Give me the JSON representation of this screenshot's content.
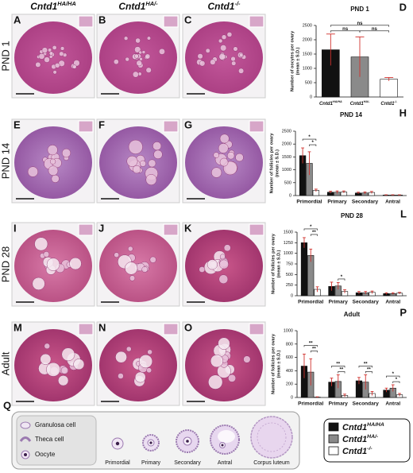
{
  "figure": {
    "columns": [
      {
        "gene": "Cntd1",
        "allele": "HA/HA"
      },
      {
        "gene": "Cntd1",
        "allele": "HA/-"
      },
      {
        "gene": "Cntd1",
        "allele": "-/-"
      }
    ],
    "rows": [
      "PND 1",
      "PND 14",
      "PND 28",
      "Adult"
    ],
    "panels": [
      [
        "A",
        "B",
        "C"
      ],
      [
        "E",
        "F",
        "G"
      ],
      [
        "I",
        "J",
        "K"
      ],
      [
        "M",
        "N",
        "O"
      ]
    ]
  },
  "chart_data": [
    {
      "type": "bar",
      "panel": "D",
      "title": "PND 1",
      "ylabel": [
        "Number of oocytes per ovary",
        "(mean ± S.D.)"
      ],
      "categories": [
        {
          "gene": "Cntd1",
          "allele": "HA/HA"
        },
        {
          "gene": "Cntd1",
          "allele": "HA/-"
        },
        {
          "gene": "Cntd1",
          "allele": "-/-"
        }
      ],
      "values": [
        1650,
        1400,
        620
      ],
      "errors": [
        550,
        700,
        60
      ],
      "colors": [
        "#111111",
        "#8a8a8a",
        "#ffffff"
      ],
      "ylim": [
        0,
        2500
      ],
      "yticks": [
        0,
        500,
        1000,
        1500,
        2000,
        2500
      ],
      "annotations": [
        "ns",
        "ns",
        "ns"
      ]
    },
    {
      "type": "grouped_bar",
      "panel": "H",
      "title": "PND 14",
      "ylabel": [
        "Number of follicles per ovary",
        "(mean ± S.D.)"
      ],
      "categories": [
        "Primordial",
        "Primary",
        "Secondary",
        "Antral"
      ],
      "series": [
        {
          "color": "#111111",
          "values": [
            1550,
            130,
            100,
            20
          ],
          "errors": [
            300,
            40,
            30,
            10
          ]
        },
        {
          "color": "#8a8a8a",
          "values": [
            1250,
            130,
            100,
            20
          ],
          "errors": [
            450,
            50,
            40,
            10
          ]
        },
        {
          "color": "#ffffff",
          "values": [
            200,
            140,
            120,
            20
          ],
          "errors": [
            50,
            40,
            40,
            10
          ]
        }
      ],
      "ylim": [
        0,
        2500
      ],
      "yticks": [
        0,
        500,
        1000,
        1500,
        2000,
        2500
      ],
      "annotations": [
        "*",
        "*"
      ]
    },
    {
      "type": "grouped_bar",
      "panel": "L",
      "title": "PND 28",
      "ylabel": [
        "Number of follicles per ovary",
        "(mean ± S.D.)"
      ],
      "categories": [
        "Primordial",
        "Primary",
        "Secondary",
        "Antral"
      ],
      "series": [
        {
          "color": "#111111",
          "values": [
            1250,
            220,
            70,
            50
          ],
          "errors": [
            120,
            100,
            30,
            20
          ]
        },
        {
          "color": "#8a8a8a",
          "values": [
            950,
            230,
            70,
            50
          ],
          "errors": [
            150,
            80,
            30,
            20
          ]
        },
        {
          "color": "#ffffff",
          "values": [
            150,
            100,
            80,
            60
          ],
          "errors": [
            60,
            40,
            30,
            20
          ]
        }
      ],
      "ylim": [
        0,
        1500
      ],
      "yticks": [
        0,
        250,
        500,
        750,
        1000,
        1250,
        1500
      ],
      "annotations": [
        "*",
        "**",
        "*"
      ]
    },
    {
      "type": "grouped_bar",
      "panel": "P",
      "title": "Adult",
      "ylabel": [
        "Number of follicles per ovary",
        "(mean ± S.D.)"
      ],
      "categories": [
        "Primordial",
        "Primary",
        "Secondary",
        "Antral"
      ],
      "series": [
        {
          "color": "#111111",
          "values": [
            470,
            230,
            250,
            110
          ],
          "errors": [
            180,
            60,
            50,
            30
          ]
        },
        {
          "color": "#8a8a8a",
          "values": [
            380,
            240,
            230,
            140
          ],
          "errors": [
            200,
            100,
            110,
            50
          ]
        },
        {
          "color": "#ffffff",
          "values": [
            5,
            30,
            60,
            40
          ],
          "errors": [
            5,
            20,
            30,
            20
          ]
        }
      ],
      "ylim": [
        0,
        1000
      ],
      "yticks": [
        0,
        200,
        400,
        600,
        800,
        1000
      ],
      "annotations": [
        "**",
        "**",
        "**",
        "**",
        "**",
        "**",
        "*",
        "*"
      ]
    }
  ],
  "legend": {
    "entries": [
      {
        "gene": "Cntd1",
        "allele": "HA/HA"
      },
      {
        "gene": "Cntd1",
        "allele": "HA/-"
      },
      {
        "gene": "Cntd1",
        "allele": "-/-"
      }
    ]
  },
  "diagram": {
    "panel": "Q",
    "key": [
      "Granulosa cell",
      "Theca cell",
      "Oocyte"
    ],
    "stages": [
      "Primordial",
      "Primary",
      "Secondary",
      "Antral",
      "Corpus luteum"
    ]
  }
}
